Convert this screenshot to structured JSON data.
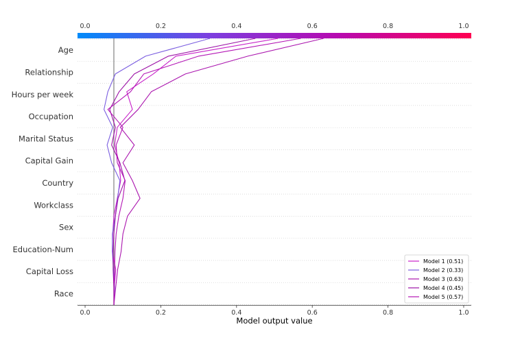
{
  "chart_data": {
    "type": "line",
    "title": "",
    "xlabel": "Model output value",
    "ylabel": "",
    "xlim": [
      -0.02,
      1.02
    ],
    "x_ticks": [
      "0.0",
      "0.2",
      "0.4",
      "0.6",
      "0.8",
      "1.0"
    ],
    "x_tick_values": [
      0.0,
      0.2,
      0.4,
      0.6,
      0.8,
      1.0
    ],
    "base_value": 0.076,
    "features": [
      "Age",
      "Relationship",
      "Hours per week",
      "Occupation",
      "Marital Status",
      "Capital Gain",
      "Country",
      "Workclass",
      "Sex",
      "Education-Num",
      "Capital Loss",
      "Race"
    ],
    "colorbar": {
      "colors": [
        "#008bfa",
        "#7b3fe0",
        "#b60ab0",
        "#ff0052"
      ]
    },
    "legend_position": "lower-right",
    "series": [
      {
        "name": "Model 1 (0.51)",
        "color": "#c71fc9",
        "points": [
          0.076,
          0.077,
          0.081,
          0.072,
          0.073,
          0.076,
          0.085,
          0.094,
          0.09,
          0.078,
          0.085,
          0.125,
          0.11,
          0.18,
          0.24,
          0.51
        ]
      },
      {
        "name": "Model 2 (0.33)",
        "color": "#7a5de0",
        "points": [
          0.076,
          0.078,
          0.075,
          0.072,
          0.072,
          0.08,
          0.086,
          0.092,
          0.07,
          0.058,
          0.073,
          0.05,
          0.06,
          0.08,
          0.16,
          0.33
        ]
      },
      {
        "name": "Model 3 (0.63)",
        "color": "#aa14ae",
        "points": [
          0.076,
          0.081,
          0.086,
          0.095,
          0.1,
          0.112,
          0.145,
          0.125,
          0.1,
          0.13,
          0.093,
          0.14,
          0.175,
          0.265,
          0.43,
          0.63
        ]
      },
      {
        "name": "Model 4 (0.45)",
        "color": "#9b10a6",
        "points": [
          0.076,
          0.076,
          0.074,
          0.074,
          0.076,
          0.08,
          0.087,
          0.105,
          0.092,
          0.07,
          0.08,
          0.065,
          0.09,
          0.13,
          0.22,
          0.45
        ]
      },
      {
        "name": "Model 5 (0.57)",
        "color": "#b315b5",
        "points": [
          0.076,
          0.077,
          0.078,
          0.079,
          0.082,
          0.089,
          0.1,
          0.106,
          0.085,
          0.082,
          0.1,
          0.06,
          0.12,
          0.155,
          0.3,
          0.57
        ]
      }
    ]
  }
}
